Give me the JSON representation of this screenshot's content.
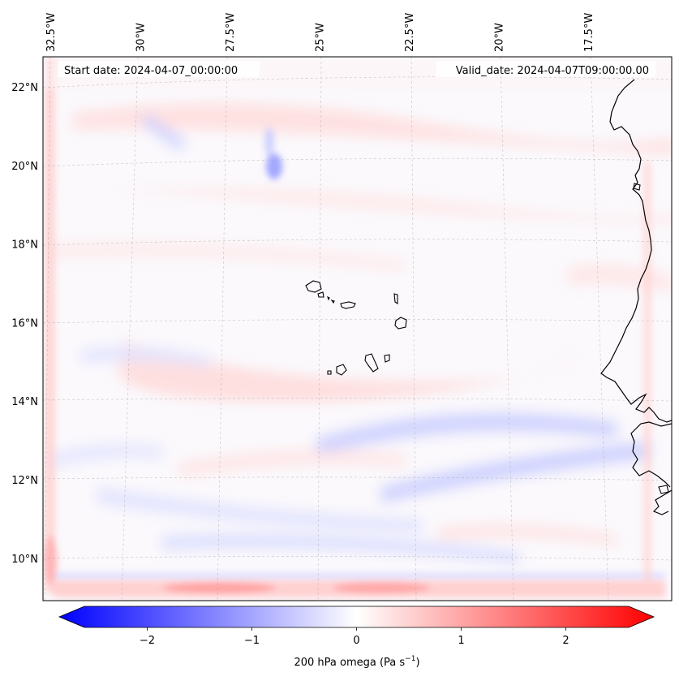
{
  "chart_data": {
    "type": "heatmap",
    "projection": "lambert-conformal",
    "variable": "200 hPa omega",
    "colorbar": {
      "label_prefix": "200 hPa omega (Pa s",
      "label_exp": "−1",
      "label_suffix": ")",
      "range": [
        -2.6,
        2.6
      ],
      "extend": "both",
      "colormap": "bwr",
      "color_low": "#0000ff",
      "color_mid": "#ffffff",
      "color_high": "#ff0000",
      "ticks": [
        {
          "value": -2,
          "label": "−2"
        },
        {
          "value": -1,
          "label": "−1"
        },
        {
          "value": 0,
          "label": "0"
        },
        {
          "value": 1,
          "label": "1"
        },
        {
          "value": 2,
          "label": "2"
        }
      ]
    },
    "lon_ticks": [
      {
        "value": -32.5,
        "label": "32.5°W"
      },
      {
        "value": -30,
        "label": "30°W"
      },
      {
        "value": -27.5,
        "label": "27.5°W"
      },
      {
        "value": -25,
        "label": "25°W"
      },
      {
        "value": -22.5,
        "label": "22.5°W"
      },
      {
        "value": -20,
        "label": "20°W"
      },
      {
        "value": -17.5,
        "label": "17.5°W"
      }
    ],
    "lat_ticks": [
      {
        "value": 22,
        "label": "22°N"
      },
      {
        "value": 20,
        "label": "20°N"
      },
      {
        "value": 18,
        "label": "18°N"
      },
      {
        "value": 16,
        "label": "16°N"
      },
      {
        "value": 14,
        "label": "14°N"
      },
      {
        "value": 12,
        "label": "12°N"
      },
      {
        "value": 10,
        "label": "10°N"
      }
    ],
    "gridlines": true,
    "coastlines": true,
    "start_date": "Start date: 2024-04-07_00:00:00",
    "valid_date": "Valid_date: 2024-04-07T09:00:00.00",
    "features": [
      {
        "lon": -25.5,
        "lat": 20.0,
        "value": -1.6
      },
      {
        "lon": -25.6,
        "lat": 20.8,
        "value": -0.7
      },
      {
        "lon": -30.5,
        "lat": 21.0,
        "value": -0.8
      },
      {
        "lon": -27.5,
        "lat": 21.8,
        "value": 0.4
      },
      {
        "lon": -25.0,
        "lat": 20.2,
        "value": 0.6
      },
      {
        "lon": -28.5,
        "lat": 14.6,
        "value": 0.7
      },
      {
        "lon": -25.5,
        "lat": 14.8,
        "value": 0.5
      },
      {
        "lon": -22.0,
        "lat": 15.6,
        "value": 0.4
      },
      {
        "lon": -30.5,
        "lat": 15.2,
        "value": -0.6
      },
      {
        "lon": -21.5,
        "lat": 13.3,
        "value": -0.9
      },
      {
        "lon": -18.5,
        "lat": 12.8,
        "value": -1.0
      },
      {
        "lon": -20.5,
        "lat": 12.0,
        "value": -0.8
      },
      {
        "lon": -23.0,
        "lat": 11.2,
        "value": -0.6
      },
      {
        "lon": -27.5,
        "lat": 10.4,
        "value": -0.7
      },
      {
        "lon": -22.0,
        "lat": 10.6,
        "value": 0.5
      },
      {
        "lon": -27.5,
        "lat": 9.3,
        "value": 1.6
      },
      {
        "lon": -23.0,
        "lat": 9.3,
        "value": 1.5
      },
      {
        "lon": -33.5,
        "lat": 10.0,
        "value": 1.3
      },
      {
        "lon": -33.3,
        "lat": 12.5,
        "value": 0.8
      },
      {
        "lon": -15.5,
        "lat": 13.0,
        "value": -0.9
      },
      {
        "lon": -15.5,
        "lat": 11.0,
        "value": 0.6
      },
      {
        "lon": -19.0,
        "lat": 17.5,
        "value": 0.4
      },
      {
        "lon": -16.5,
        "lat": 20.0,
        "value": -0.5
      }
    ]
  }
}
